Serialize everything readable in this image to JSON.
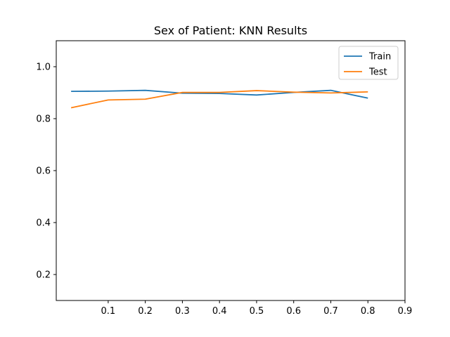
{
  "chart_data": {
    "type": "line",
    "title": "Sex of Patient: KNN Results",
    "xlabel": "",
    "ylabel": "",
    "xlim": [
      -0.04,
      0.9
    ],
    "ylim": [
      0.1,
      1.1
    ],
    "xticks": [
      "0.1",
      "0.2",
      "0.3",
      "0.4",
      "0.5",
      "0.6",
      "0.7",
      "0.8",
      "0.9"
    ],
    "yticks": [
      "0.2",
      "0.4",
      "0.6",
      "0.8",
      "1.0"
    ],
    "x": [
      0.0,
      0.1,
      0.2,
      0.3,
      0.4,
      0.5,
      0.6,
      0.7,
      0.8
    ],
    "series": [
      {
        "name": "Train",
        "color": "#1f77b4",
        "values": [
          0.905,
          0.906,
          0.909,
          0.898,
          0.897,
          0.891,
          0.901,
          0.909,
          0.879
        ]
      },
      {
        "name": "Test",
        "color": "#ff7f0e",
        "values": [
          0.842,
          0.872,
          0.875,
          0.901,
          0.901,
          0.908,
          0.902,
          0.899,
          0.903
        ]
      }
    ],
    "legend": "top-right",
    "grid": false
  }
}
